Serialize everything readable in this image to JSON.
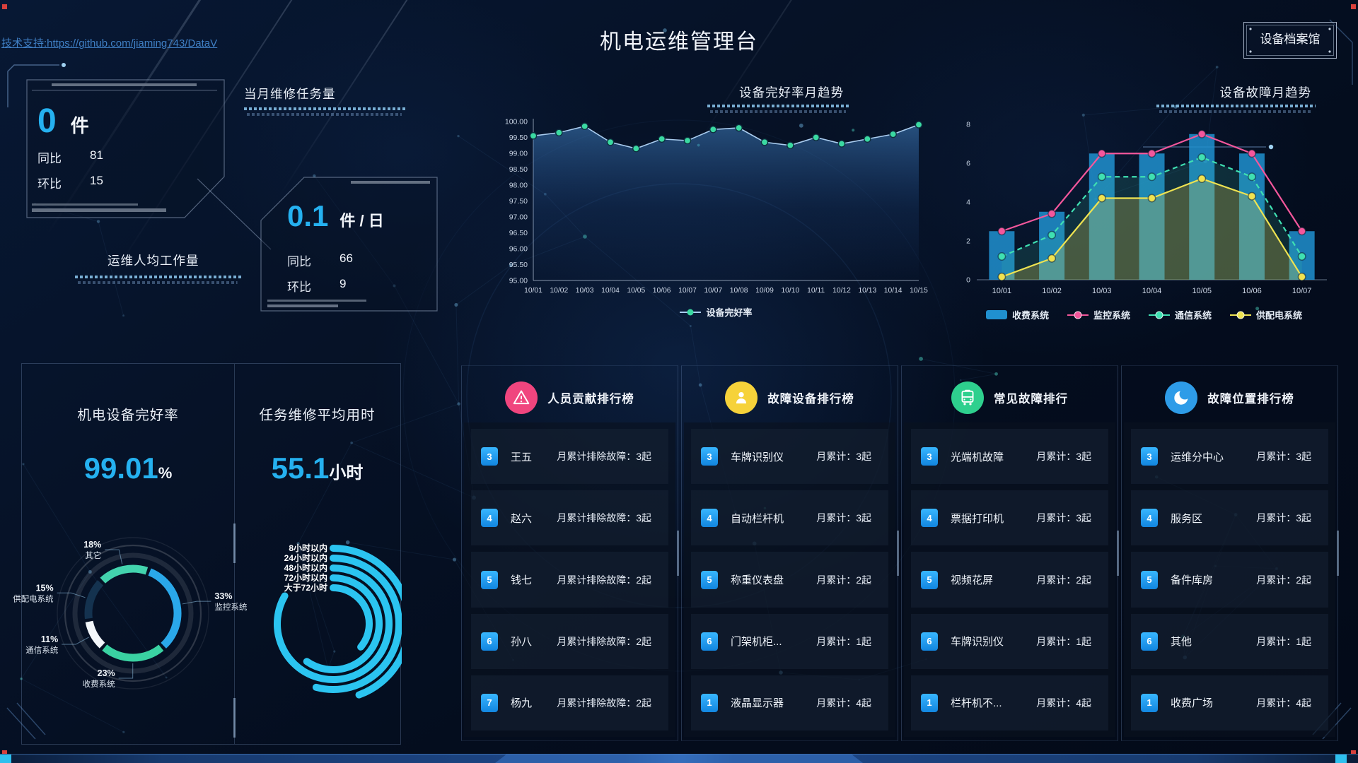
{
  "header": {
    "support_prefix": "技术支持:",
    "support_link": "https://github.com/jiaming743/DataV",
    "title": "机电运维管理台",
    "archive_button": "设备档案馆"
  },
  "stat_cards": {
    "monthly_tasks": {
      "label": "当月维修任务量",
      "value": "0",
      "unit": "件",
      "rows": [
        {
          "label": "同比",
          "value": "81"
        },
        {
          "label": "环比",
          "value": "15"
        }
      ]
    },
    "per_capita": {
      "label": "运维人均工作量",
      "value": "0.1",
      "unit": "件 / 日",
      "rows": [
        {
          "label": "同比",
          "value": "66"
        },
        {
          "label": "环比",
          "value": "9"
        }
      ]
    }
  },
  "chart_data": [
    {
      "id": "health_trend",
      "type": "area",
      "title": "设备完好率月趋势",
      "x": [
        "10/01",
        "10/02",
        "10/03",
        "10/04",
        "10/05",
        "10/06",
        "10/07",
        "10/07",
        "10/08",
        "10/09",
        "10/10",
        "10/11",
        "10/12",
        "10/13",
        "10/14",
        "10/15"
      ],
      "series": [
        {
          "name": "设备完好率",
          "values": [
            99.55,
            99.65,
            99.85,
            99.35,
            99.15,
            99.45,
            99.4,
            99.75,
            99.8,
            99.35,
            99.25,
            99.5,
            99.3,
            99.45,
            99.6,
            99.9
          ]
        }
      ],
      "ylim": [
        95,
        100
      ],
      "yticks": [
        "100.00",
        "99.50",
        "99.00",
        "98.50",
        "98.00",
        "97.50",
        "97.00",
        "96.50",
        "96.00",
        "95.50",
        "95.00"
      ],
      "line_color": "#aacdf0",
      "dot_color": "#3bd9a2",
      "legend_position": "bottom"
    },
    {
      "id": "fault_trend",
      "type": "bar-line",
      "title": "设备故障月趋势",
      "x": [
        "10/01",
        "10/02",
        "10/03",
        "10/04",
        "10/05",
        "10/06",
        "10/07"
      ],
      "ylim": [
        0,
        8
      ],
      "yticks": [
        "0",
        "2",
        "4",
        "6",
        "8"
      ],
      "series": [
        {
          "name": "收费系统",
          "kind": "bar",
          "color": "#2090cf",
          "values": [
            2.5,
            3.5,
            6.5,
            6.5,
            7.5,
            6.5,
            2.5
          ]
        },
        {
          "name": "监控系统",
          "kind": "line",
          "color": "#f4579c",
          "values": [
            2.5,
            3.4,
            6.5,
            6.5,
            7.5,
            6.5,
            2.5
          ]
        },
        {
          "name": "通信系统",
          "kind": "line-dashed",
          "color": "#3fe0b2",
          "fill": "rgba(62,200,170,0.16)",
          "values": [
            1.2,
            2.3,
            5.3,
            5.3,
            6.3,
            5.3,
            1.2
          ]
        },
        {
          "name": "供配电系统",
          "kind": "line-area",
          "color": "#efe351",
          "fill": "rgba(200,190,80,0.30)",
          "values": [
            0.15,
            1.1,
            4.2,
            4.2,
            5.2,
            4.3,
            0.15
          ]
        }
      ],
      "legend_position": "bottom"
    },
    {
      "id": "health_ring",
      "type": "pie",
      "title": "机电设备完好率",
      "value": "99.01",
      "unit": "%",
      "start_angle": 20,
      "slices": [
        {
          "label": "监控系统",
          "pct": 33,
          "color": "#2aa8ea"
        },
        {
          "label": "收费系统",
          "pct": 23,
          "color": "#3ad2a2"
        },
        {
          "label": "通信系统",
          "pct": 11,
          "color": "#f2f6fa"
        },
        {
          "label": "供配电系统",
          "pct": 15,
          "color": "#14324f"
        },
        {
          "label": "其它",
          "pct": 18,
          "color": "#43d3ae"
        }
      ]
    },
    {
      "id": "repair_time",
      "type": "arcs",
      "title": "任务维修平均用时",
      "value": "55.1",
      "unit": "小时",
      "color": "#2bc4f0",
      "rings": [
        {
          "label": "8小时以内",
          "sweep": 160
        },
        {
          "label": "24小时以内",
          "sweep": 195
        },
        {
          "label": "48小时以内",
          "sweep": 300
        },
        {
          "label": "72小时以内",
          "sweep": 215
        },
        {
          "label": "大于72小时",
          "sweep": 130
        }
      ]
    }
  ],
  "rankings": [
    {
      "title": "人员贡献排行榜",
      "icon": "alert-triangle-icon",
      "icon_bg": "#f0457e",
      "rows": [
        {
          "rank": "3",
          "name": "王五",
          "detail": "月累计排除故障：3起"
        },
        {
          "rank": "4",
          "name": "赵六",
          "detail": "月累计排除故障：3起"
        },
        {
          "rank": "5",
          "name": "钱七",
          "detail": "月累计排除故障：2起"
        },
        {
          "rank": "6",
          "name": "孙八",
          "detail": "月累计排除故障：2起"
        },
        {
          "rank": "7",
          "name": "杨九",
          "detail": "月累计排除故障：2起"
        }
      ]
    },
    {
      "title": "故障设备排行榜",
      "icon": "person-icon",
      "icon_bg": "#f6d23a",
      "rows": [
        {
          "rank": "3",
          "name": "车牌识别仪",
          "detail": "月累计：3起"
        },
        {
          "rank": "4",
          "name": "自动栏杆机",
          "detail": "月累计：3起"
        },
        {
          "rank": "5",
          "name": "称重仪表盘",
          "detail": "月累计：2起"
        },
        {
          "rank": "6",
          "name": "门架机柜...",
          "detail": "月累计：1起"
        },
        {
          "rank": "1",
          "name": "液晶显示器",
          "detail": "月累计：4起"
        }
      ]
    },
    {
      "title": "常见故障排行",
      "icon": "bus-icon",
      "icon_bg": "#2ed08e",
      "rows": [
        {
          "rank": "3",
          "name": "光端机故障",
          "detail": "月累计：3起"
        },
        {
          "rank": "4",
          "name": "票据打印机",
          "detail": "月累计：3起"
        },
        {
          "rank": "5",
          "name": "视频花屏",
          "detail": "月累计：2起"
        },
        {
          "rank": "6",
          "name": "车牌识别仪",
          "detail": "月累计：1起"
        },
        {
          "rank": "1",
          "name": "栏杆机不...",
          "detail": "月累计：4起"
        }
      ]
    },
    {
      "title": "故障位置排行榜",
      "icon": "moon-icon",
      "icon_bg": "#2e9ce8",
      "rows": [
        {
          "rank": "3",
          "name": "运维分中心",
          "detail": "月累计：3起"
        },
        {
          "rank": "4",
          "name": "服务区",
          "detail": "月累计：3起"
        },
        {
          "rank": "5",
          "name": "备件库房",
          "detail": "月累计：2起"
        },
        {
          "rank": "6",
          "name": "其他",
          "detail": "月累计：1起"
        },
        {
          "rank": "1",
          "name": "收费广场",
          "detail": "月累计：4起"
        }
      ]
    }
  ],
  "colors": {
    "accent_cyan": "#25b1f0",
    "badge_blue": "#1e9df0",
    "bar_blue": "#2090cf",
    "pink": "#f4579c",
    "teal": "#3fe0b2",
    "yellow": "#efe351"
  }
}
